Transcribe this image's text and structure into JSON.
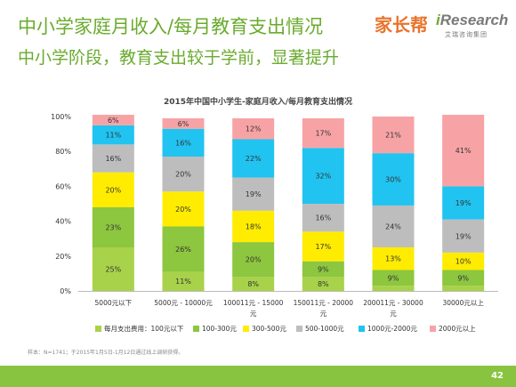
{
  "page": {
    "title": "中小学家庭月收入/每月教育支出情况",
    "subtitle": "中小学阶段，教育支出较于学前，显著提升",
    "logo_cn": "家长帮",
    "logo_ir_i": "i",
    "logo_ir_rest": "Research",
    "logo_ir_cn": "艾瑞咨询集团",
    "source": "样本：N=1741；于2015年1月5日-1月12日通过线上调研获得。",
    "page_number": "42"
  },
  "colors": {
    "title": "#6aab2e",
    "footer": "#88c43f",
    "series": [
      "#a8d24a",
      "#8dc63f",
      "#ffec00",
      "#bdbdbd",
      "#21c3f0",
      "#f7a3a6"
    ]
  },
  "chart_data": {
    "type": "bar",
    "stacked": true,
    "title": "2015年中国中小学生-家庭月收入/每月教育支出情况",
    "categories": [
      [
        "5000元以下"
      ],
      [
        "5000元 - 10000元"
      ],
      [
        "100011元 - 15000",
        "元"
      ],
      [
        "150011元 - 20000",
        "元"
      ],
      [
        "200011元 - 30000",
        "元"
      ],
      [
        "30000元以上"
      ]
    ],
    "y_ticks": [
      "0%",
      "20%",
      "40%",
      "60%",
      "80%",
      "100%"
    ],
    "ylim": [
      0,
      100
    ],
    "legend_position": "bottom",
    "series": [
      {
        "name": "每月支出费用：100元以下",
        "values": [
          25,
          11,
          8,
          8,
          3,
          3
        ],
        "labels": [
          "25%",
          "11%",
          "8%",
          "8%",
          "",
          ""
        ]
      },
      {
        "name": "100-300元",
        "values": [
          23,
          26,
          20,
          9,
          9,
          9
        ],
        "labels": [
          "23%",
          "26%",
          "20%",
          "9%",
          "9%",
          "9%"
        ]
      },
      {
        "name": "300-500元",
        "values": [
          20,
          20,
          18,
          17,
          13,
          10
        ],
        "labels": [
          "20%",
          "20%",
          "18%",
          "17%",
          "13%",
          "10%"
        ]
      },
      {
        "name": "500-1000元",
        "values": [
          16,
          20,
          19,
          16,
          24,
          19
        ],
        "labels": [
          "16%",
          "20%",
          "19%",
          "16%",
          "24%",
          "19%"
        ]
      },
      {
        "name": "1000元-2000元",
        "values": [
          11,
          16,
          22,
          32,
          30,
          19
        ],
        "labels": [
          "11%",
          "16%",
          "22%",
          "32%",
          "30%",
          "19%"
        ]
      },
      {
        "name": "2000元以上",
        "values": [
          6,
          6,
          12,
          17,
          21,
          41
        ],
        "labels": [
          "6%",
          "6%",
          "12%",
          "17%",
          "21%",
          "41%"
        ]
      }
    ]
  }
}
